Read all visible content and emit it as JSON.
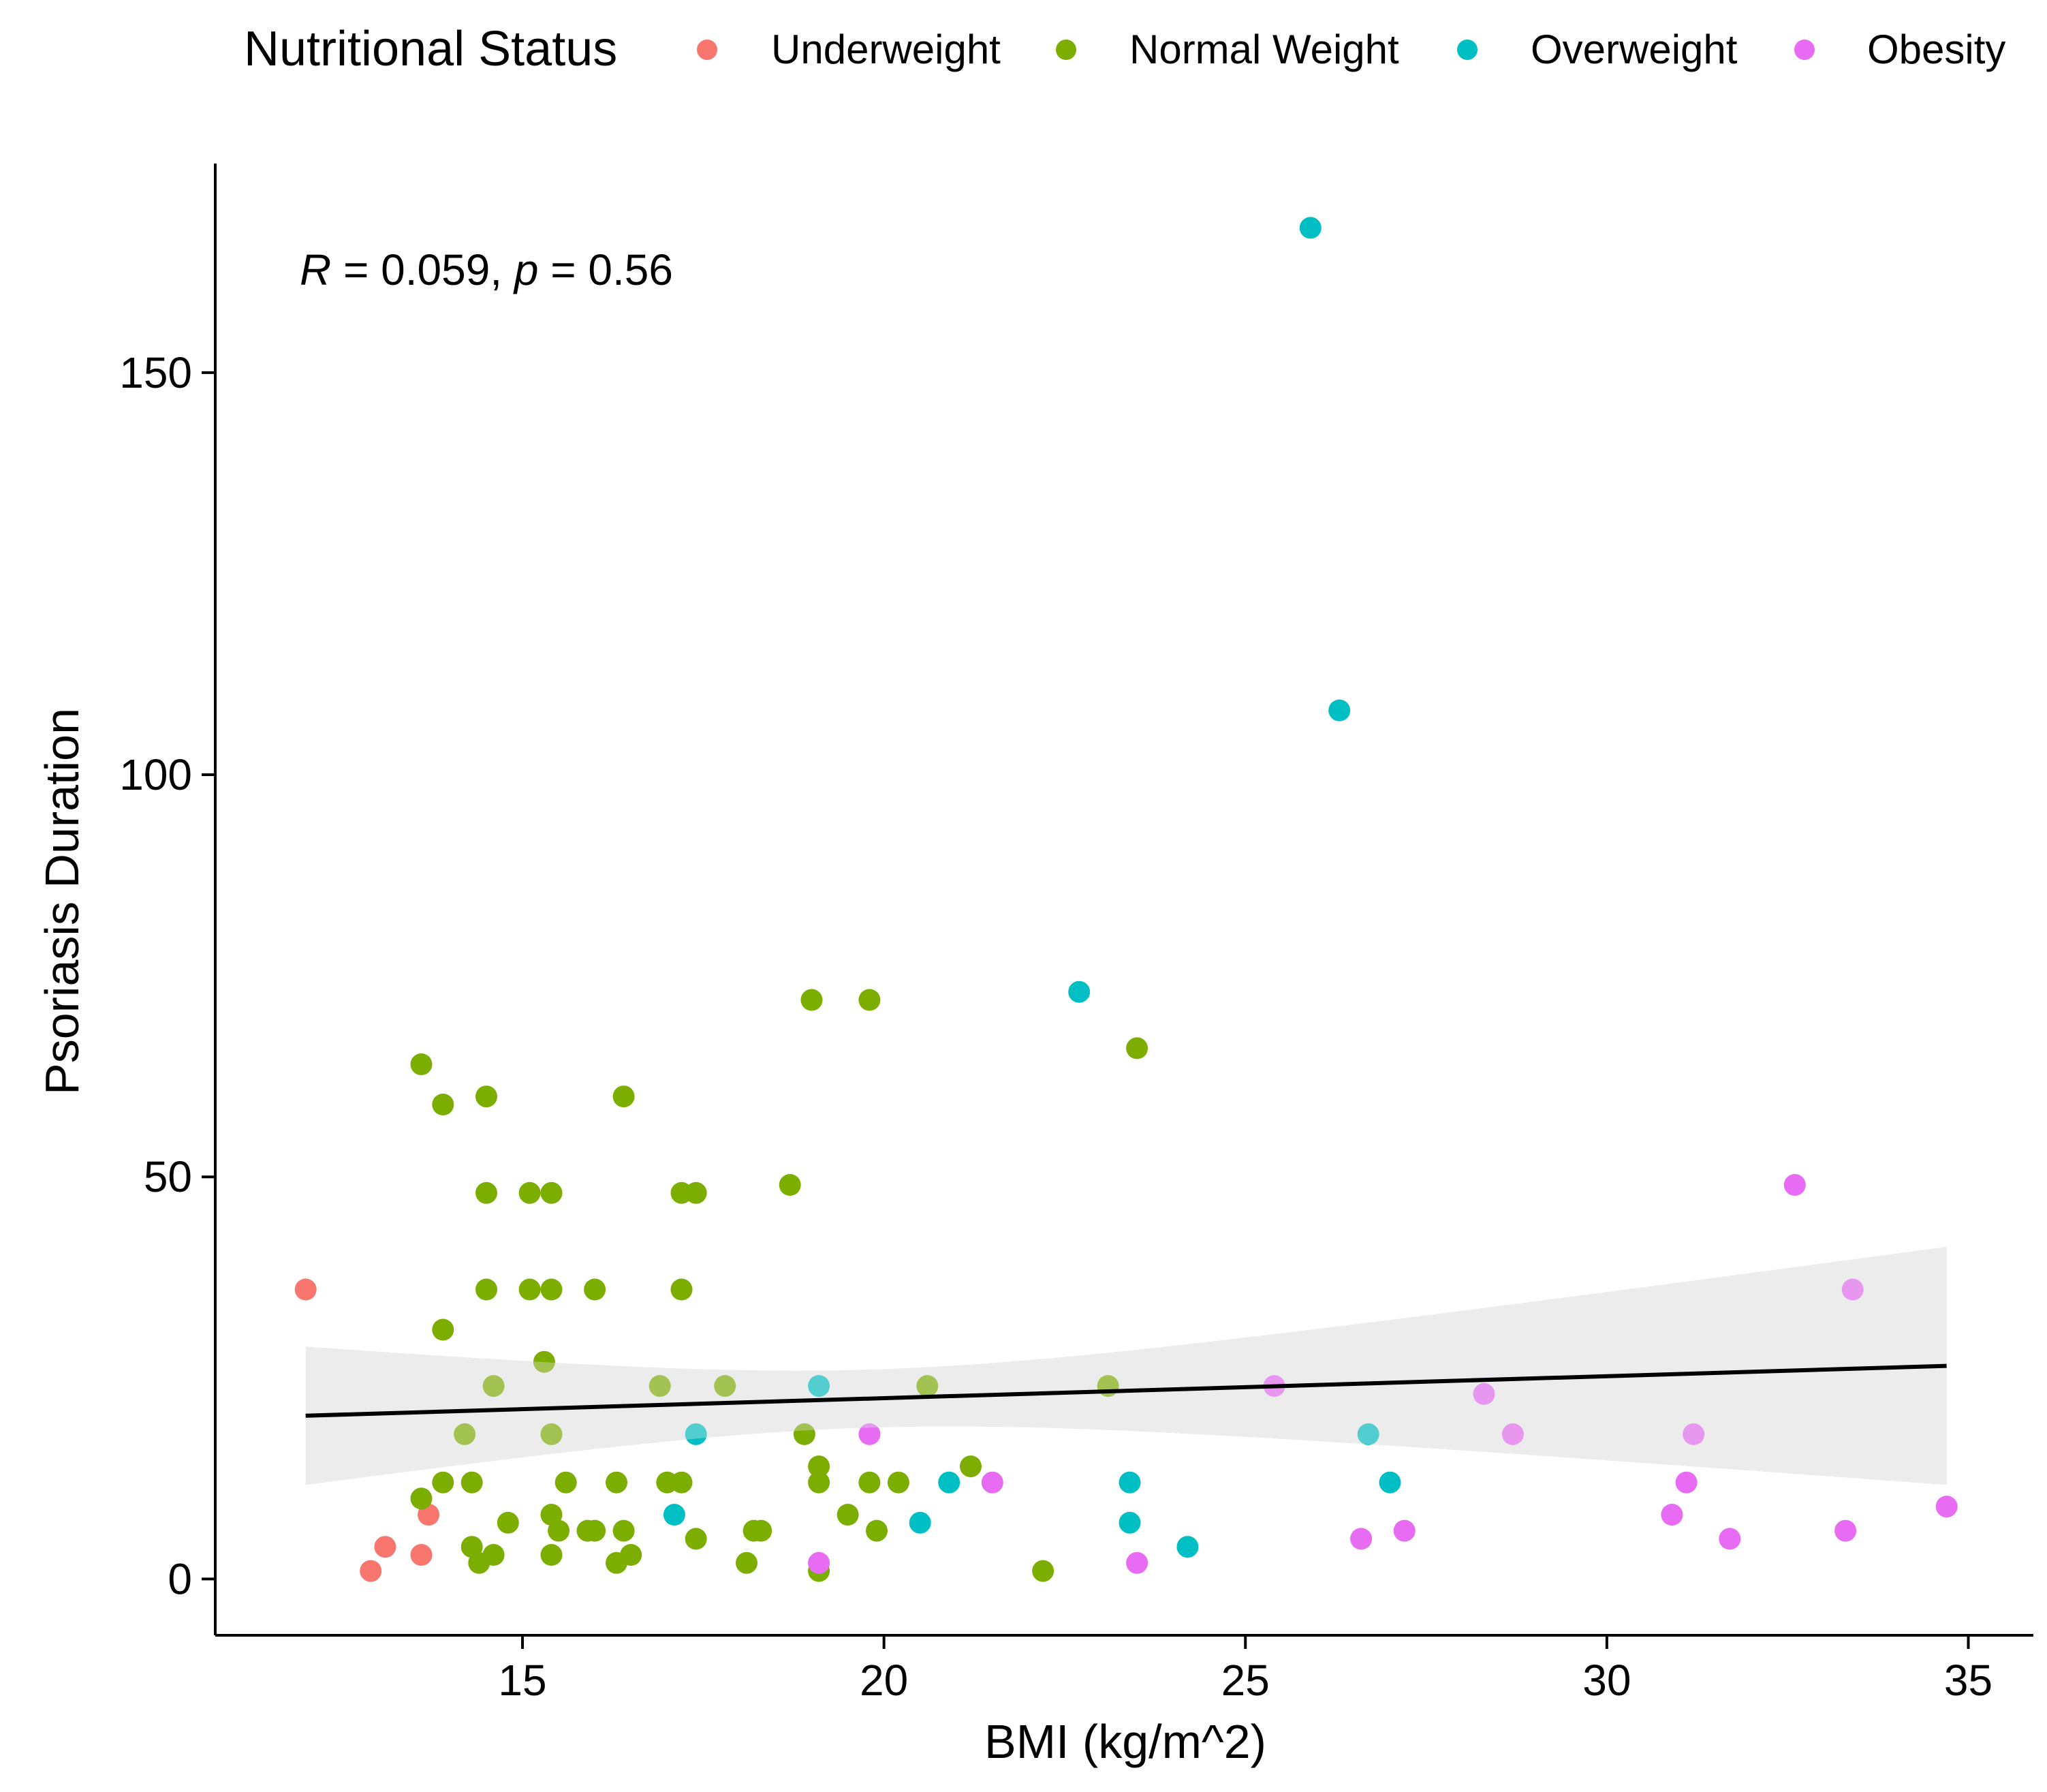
{
  "chart_data": {
    "type": "scatter",
    "xlabel": "BMI (kg/m^2)",
    "ylabel": "Psoriasis Duration",
    "xlim": [
      10.75,
      35.9
    ],
    "ylim": [
      -7,
      176
    ],
    "x_ticks": [
      15,
      20,
      25,
      30,
      35
    ],
    "y_ticks": [
      0,
      50,
      100,
      150
    ],
    "grid": false,
    "legend": {
      "title": "Nutritional Status",
      "position": "top",
      "entries": [
        {
          "name": "Underweight",
          "color": "#F8766D"
        },
        {
          "name": "Normal Weight",
          "color": "#7CAE00"
        },
        {
          "name": "Overweight",
          "color": "#00BFC4"
        },
        {
          "name": "Obesity",
          "color": "#E76BF3"
        }
      ]
    },
    "annotation": {
      "r_symbol": "R",
      "r_value": " = 0.059, ",
      "p_symbol": "p",
      "p_value": " = 0.56"
    },
    "regression": {
      "x_range": [
        12,
        34.7
      ],
      "fit": [
        20.3,
        26.5
      ],
      "ci_lower": [
        11.7,
        11.7
      ],
      "ci_upper": [
        28.9,
        41.3
      ],
      "ci_fill": "#EBEBEB",
      "line_color": "#000000"
    },
    "series": [
      {
        "name": "Underweight",
        "color": "#F8766D",
        "points": [
          [
            12.0,
            36
          ],
          [
            12.9,
            1
          ],
          [
            13.1,
            4
          ],
          [
            13.6,
            3
          ],
          [
            13.7,
            8
          ]
        ]
      },
      {
        "name": "Normal Weight",
        "color": "#7CAE00",
        "points": [
          [
            13.6,
            64
          ],
          [
            13.9,
            59
          ],
          [
            13.9,
            31
          ],
          [
            13.6,
            10
          ],
          [
            13.9,
            12
          ],
          [
            14.2,
            18
          ],
          [
            14.3,
            12
          ],
          [
            14.3,
            4
          ],
          [
            14.4,
            2
          ],
          [
            14.5,
            60
          ],
          [
            14.5,
            48
          ],
          [
            14.5,
            36
          ],
          [
            14.6,
            24
          ],
          [
            14.6,
            3
          ],
          [
            14.8,
            7
          ],
          [
            15.1,
            48
          ],
          [
            15.1,
            36
          ],
          [
            15.3,
            27
          ],
          [
            15.4,
            48
          ],
          [
            15.4,
            36
          ],
          [
            15.4,
            18
          ],
          [
            15.4,
            8
          ],
          [
            15.4,
            3
          ],
          [
            15.5,
            6
          ],
          [
            15.6,
            12
          ],
          [
            16.0,
            36
          ],
          [
            15.9,
            6
          ],
          [
            16.0,
            6
          ],
          [
            16.3,
            12
          ],
          [
            16.3,
            2
          ],
          [
            16.4,
            60
          ],
          [
            16.4,
            6
          ],
          [
            16.5,
            3
          ],
          [
            16.9,
            24
          ],
          [
            17.0,
            12
          ],
          [
            17.2,
            48
          ],
          [
            17.2,
            36
          ],
          [
            17.2,
            12
          ],
          [
            17.4,
            48
          ],
          [
            17.4,
            5
          ],
          [
            17.8,
            24
          ],
          [
            18.1,
            2
          ],
          [
            18.2,
            6
          ],
          [
            18.3,
            6
          ],
          [
            18.7,
            49
          ],
          [
            18.9,
            18
          ],
          [
            19.0,
            72
          ],
          [
            19.1,
            14
          ],
          [
            19.1,
            12
          ],
          [
            19.1,
            1
          ],
          [
            19.5,
            8
          ],
          [
            19.8,
            72
          ],
          [
            19.8,
            12
          ],
          [
            19.9,
            6
          ],
          [
            20.2,
            12
          ],
          [
            20.6,
            24
          ],
          [
            21.2,
            14
          ],
          [
            22.2,
            1
          ],
          [
            23.1,
            24
          ],
          [
            23.5,
            66
          ]
        ]
      },
      {
        "name": "Overweight",
        "color": "#00BFC4",
        "points": [
          [
            17.1,
            8
          ],
          [
            17.4,
            18
          ],
          [
            19.1,
            24
          ],
          [
            20.5,
            7
          ],
          [
            20.9,
            12
          ],
          [
            22.7,
            73
          ],
          [
            23.4,
            12
          ],
          [
            23.4,
            7
          ],
          [
            24.2,
            4
          ],
          [
            25.9,
            168
          ],
          [
            26.3,
            108
          ],
          [
            26.7,
            18
          ],
          [
            27.0,
            12
          ]
        ]
      },
      {
        "name": "Obesity",
        "color": "#E76BF3",
        "points": [
          [
            19.1,
            2
          ],
          [
            19.8,
            18
          ],
          [
            21.5,
            12
          ],
          [
            23.5,
            2
          ],
          [
            25.4,
            24
          ],
          [
            26.6,
            5
          ],
          [
            27.2,
            6
          ],
          [
            28.3,
            23
          ],
          [
            28.7,
            18
          ],
          [
            30.9,
            8
          ],
          [
            31.1,
            12
          ],
          [
            31.2,
            18
          ],
          [
            31.7,
            5
          ],
          [
            32.6,
            49
          ],
          [
            33.3,
            6
          ],
          [
            33.4,
            36
          ],
          [
            34.7,
            9
          ]
        ]
      }
    ]
  }
}
